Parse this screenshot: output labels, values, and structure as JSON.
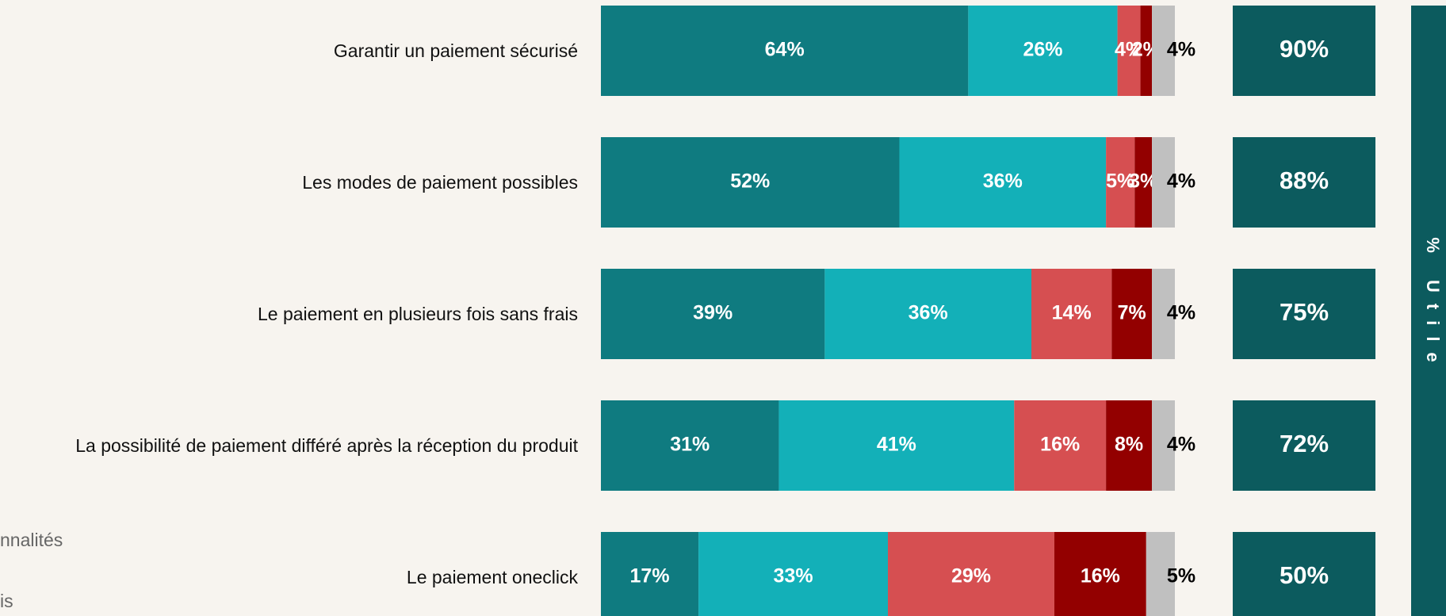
{
  "chart_data": {
    "type": "stacked_bar_horizontal",
    "categories": [
      "Garantir un paiement sécurisé",
      "Les modes de paiement possibles",
      "Le paiement en plusieurs fois sans frais",
      "La possibilité de paiement différé après la réception du produit",
      "Le paiement oneclick"
    ],
    "xlim": [
      0,
      100
    ],
    "series": [
      {
        "color": "#0f7b80",
        "label_color": "#ffffff",
        "values": [
          64,
          52,
          39,
          31,
          17
        ],
        "value_labels": [
          "64%",
          "52%",
          "39%",
          "31%",
          "17%"
        ]
      },
      {
        "color": "#13b0b8",
        "label_color": "#ffffff",
        "values": [
          26,
          36,
          36,
          41,
          33
        ],
        "value_labels": [
          "26%",
          "36%",
          "36%",
          "41%",
          "33%"
        ]
      },
      {
        "color": "#d64f51",
        "label_color": "#ffffff",
        "values": [
          4,
          5,
          14,
          16,
          29
        ],
        "value_labels": [
          "4%",
          "5%",
          "14%",
          "16%",
          "29%"
        ]
      },
      {
        "color": "#930000",
        "label_color": "#ffffff",
        "values": [
          2,
          3,
          7,
          8,
          16
        ],
        "value_labels": [
          "2%",
          "3%",
          "7%",
          "8%",
          "16%"
        ]
      },
      {
        "color": "#c0c0c0",
        "label_color": "#000000",
        "values": [
          4,
          4,
          4,
          4,
          5
        ],
        "value_labels": [
          "4%",
          "4%",
          "4%",
          "4%",
          "5%"
        ]
      }
    ],
    "totals": {
      "color": "#0c5b5e",
      "values": [
        90,
        88,
        75,
        72,
        50
      ],
      "value_labels": [
        "90%",
        "88%",
        "75%",
        "72%",
        "50%"
      ]
    },
    "side_label": "% Utile",
    "legend_fragments": [
      "nnalités",
      "is"
    ]
  }
}
